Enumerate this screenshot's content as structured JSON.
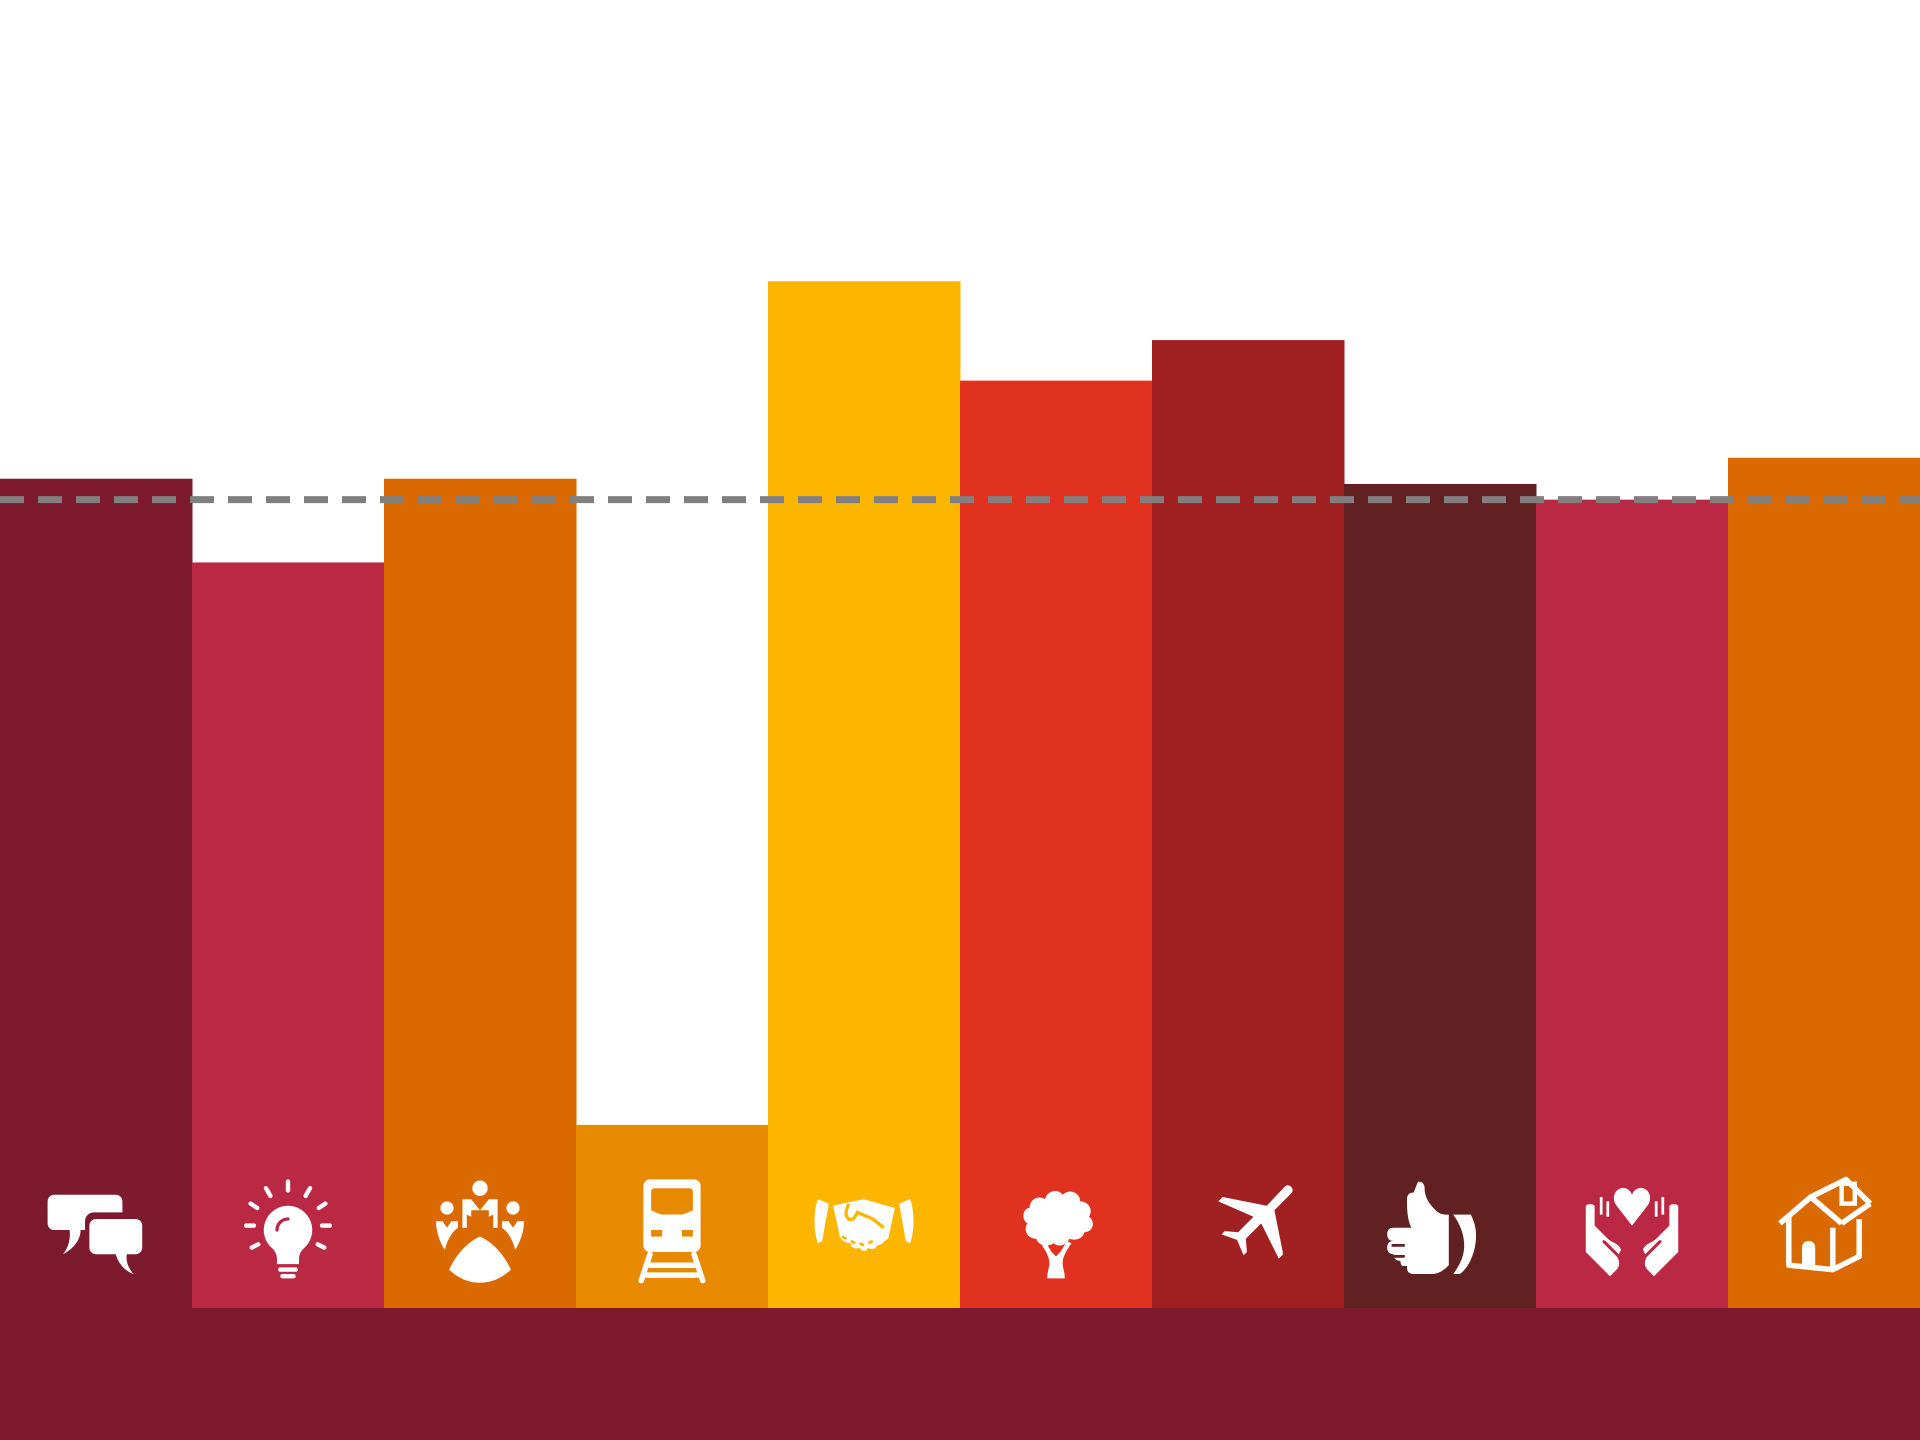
{
  "chart_data": {
    "type": "bar",
    "title": "",
    "xlabel": "",
    "ylabel": "",
    "ylim": [
      0,
      1000
    ],
    "reference_line": {
      "value": 618,
      "style": "dashed",
      "color": "#808080"
    },
    "grid": false,
    "legend": "none",
    "categories": [
      "chat-icon",
      "lightbulb-icon",
      "community-icon",
      "train-icon",
      "handshake-icon",
      "tree-icon",
      "airplane-icon",
      "thumbs-up-icon",
      "caring-hands-icon",
      "house-icon"
    ],
    "values": [
      634,
      570,
      634,
      140,
      785,
      709,
      740,
      630,
      618,
      650
    ],
    "colors": [
      "#7d1a2e",
      "#bb2843",
      "#da6a00",
      "#e88a00",
      "#fdb600",
      "#e0321f",
      "#a12022",
      "#612022",
      "#bb2843",
      "#da6a00"
    ]
  },
  "base_band_color": "#7d1a2e",
  "icon_color": "#ffffff"
}
